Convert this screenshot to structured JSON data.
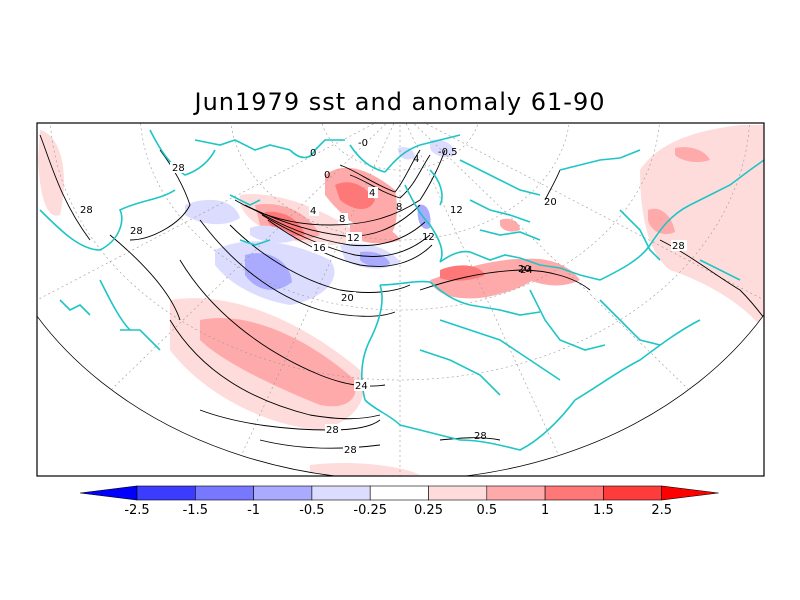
{
  "title": "Jun1979 sst and anomaly 61-90",
  "colorbar": {
    "tick_labels": [
      "-2.5",
      "-1.5",
      "-1",
      "-0.5",
      "-0.25",
      "0.25",
      "0.5",
      "1",
      "1.5",
      "2.5"
    ],
    "colors": [
      "#0000ff",
      "#3c3cff",
      "#7878ff",
      "#aaaaff",
      "#dcdcff",
      "#ffffff",
      "#ffdcdc",
      "#ffaaaa",
      "#ff7878",
      "#ff3c3c",
      "#ff0000"
    ]
  },
  "contour_labels": [
    "28",
    "28",
    "28",
    "0",
    "0",
    "-0",
    "4",
    "-0.5",
    "4",
    "8",
    "4",
    "8",
    "12",
    "12",
    "12",
    "16",
    "20",
    "20",
    "24",
    "24",
    "28",
    "28",
    "28",
    "28",
    "20"
  ]
}
